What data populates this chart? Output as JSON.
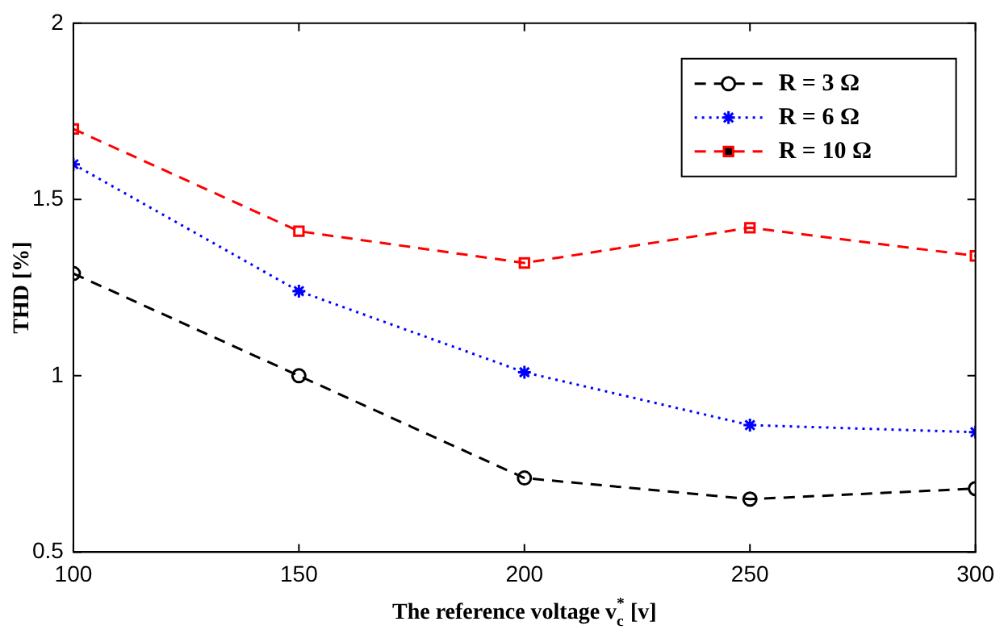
{
  "chart_data": {
    "type": "line",
    "xlabel": "The reference voltage v$_{c}$$^{*}$ [v]",
    "ylabel": "THD [%]",
    "x": [
      100,
      150,
      200,
      250,
      300
    ],
    "xlim": [
      100,
      300
    ],
    "xticks": [
      100,
      150,
      200,
      250,
      300
    ],
    "ylim": [
      0.5,
      2
    ],
    "yticks": [
      0.5,
      1,
      1.5,
      2
    ],
    "grid": false,
    "legend": "top right",
    "series": [
      {
        "name": "R = 3 Ω",
        "color": "#000000",
        "marker": "circle",
        "line_style": "dashed",
        "values": [
          1.29,
          1.0,
          0.71,
          0.65,
          0.68
        ]
      },
      {
        "name": "R = 6 Ω",
        "color": "#0000ff",
        "marker": "cross",
        "line_style": "dotted",
        "values": [
          1.6,
          1.24,
          1.01,
          0.86,
          0.84
        ]
      },
      {
        "name": "R = 10 Ω",
        "color": "#ff0000",
        "marker": "square",
        "line_style": "dashed",
        "values": [
          1.7,
          1.41,
          1.32,
          1.42,
          1.34
        ]
      }
    ]
  }
}
